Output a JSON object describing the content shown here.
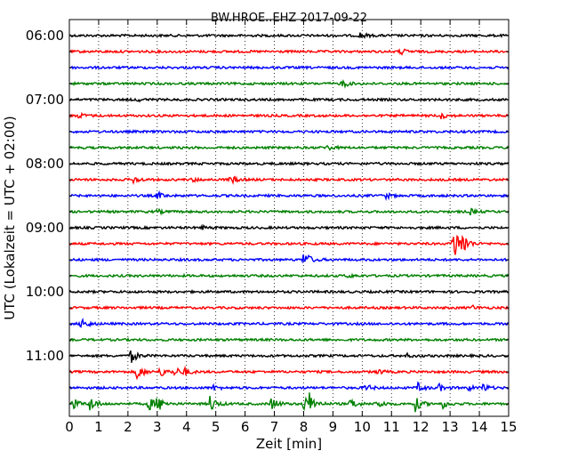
{
  "chart_data": {
    "type": "line",
    "title": "BW.HROE..EHZ 2017-09-22",
    "xlabel": "Zeit  [min]",
    "ylabel": "UTC (Lokalzeit = UTC + 02:00)",
    "xlim": [
      0,
      15
    ],
    "x_ticks": [
      "0",
      "1",
      "2",
      "3",
      "4",
      "5",
      "6",
      "7",
      "8",
      "9",
      "10",
      "11",
      "12",
      "13",
      "14",
      "15"
    ],
    "y_tick_labels": [
      "06:00",
      "07:00",
      "08:00",
      "09:00",
      "10:00",
      "11:00"
    ],
    "grid": "vertical dotted lines at each minute",
    "trace_colors": [
      "#000000",
      "#ff0000",
      "#0000ff",
      "#008000"
    ],
    "traces": [
      {
        "start": "06:00",
        "events": [
          [
            9.9,
            4
          ]
        ]
      },
      {
        "start": "06:15",
        "events": [
          [
            11.3,
            3.5
          ]
        ]
      },
      {
        "start": "06:30",
        "events": []
      },
      {
        "start": "06:45",
        "events": [
          [
            9.3,
            5
          ]
        ]
      },
      {
        "start": "07:00",
        "events": [
          [
            2.3,
            1.5
          ]
        ]
      },
      {
        "start": "07:15",
        "events": [
          [
            0.3,
            3
          ],
          [
            12.7,
            3
          ]
        ]
      },
      {
        "start": "07:30",
        "events": []
      },
      {
        "start": "07:45",
        "events": [
          [
            8.8,
            3
          ]
        ]
      },
      {
        "start": "08:00",
        "events": []
      },
      {
        "start": "08:15",
        "events": [
          [
            2.2,
            4
          ],
          [
            5.5,
            5
          ],
          [
            4.2,
            2
          ]
        ]
      },
      {
        "start": "08:30",
        "events": [
          [
            3.0,
            4
          ],
          [
            10.8,
            3
          ]
        ]
      },
      {
        "start": "08:45",
        "events": [
          [
            13.7,
            3
          ],
          [
            3.0,
            2
          ]
        ]
      },
      {
        "start": "09:00",
        "events": [
          [
            4.5,
            2
          ]
        ]
      },
      {
        "start": "09:15",
        "events": [
          [
            13.1,
            25
          ],
          [
            13.4,
            12
          ]
        ]
      },
      {
        "start": "09:30",
        "events": [
          [
            8.0,
            11
          ]
        ]
      },
      {
        "start": "09:45",
        "events": [
          [
            9.5,
            2
          ]
        ]
      },
      {
        "start": "10:00",
        "events": []
      },
      {
        "start": "10:15",
        "events": [
          [
            13.7,
            3
          ]
        ]
      },
      {
        "start": "10:30",
        "events": [
          [
            0.4,
            8
          ]
        ]
      },
      {
        "start": "10:45",
        "events": []
      },
      {
        "start": "11:00",
        "events": [
          [
            2.1,
            8
          ],
          [
            11.5,
            2
          ]
        ]
      },
      {
        "start": "11:15",
        "events": [
          [
            2.3,
            9
          ],
          [
            3.1,
            6
          ],
          [
            3.6,
            5
          ],
          [
            3.9,
            4
          ],
          [
            10.5,
            3
          ]
        ]
      },
      {
        "start": "11:30",
        "events": [
          [
            4.9,
            3
          ],
          [
            10.1,
            4
          ],
          [
            11.9,
            5
          ],
          [
            12.6,
            4
          ],
          [
            13.6,
            3
          ],
          [
            14.1,
            5
          ]
        ]
      },
      {
        "start": "11:45",
        "events": [
          [
            0.1,
            7
          ],
          [
            0.7,
            9
          ],
          [
            2.7,
            8
          ],
          [
            3.0,
            9
          ],
          [
            4.8,
            10
          ],
          [
            6.9,
            8
          ],
          [
            8.0,
            9
          ],
          [
            8.2,
            10
          ],
          [
            9.6,
            7
          ],
          [
            10.5,
            6
          ],
          [
            11.8,
            9
          ],
          [
            12.7,
            6
          ]
        ]
      }
    ]
  }
}
